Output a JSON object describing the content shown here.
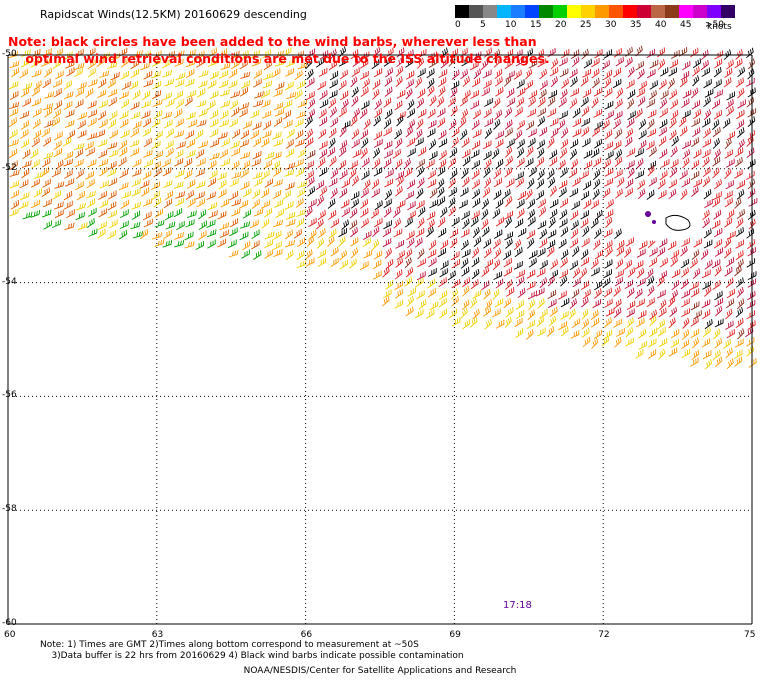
{
  "title": "Rapidscat Winds(12.5KM) 20160629 descending",
  "legend": {
    "colors": [
      "#000000",
      "#555555",
      "#888888",
      "#00b4ff",
      "#1a7cff",
      "#0044ff",
      "#008800",
      "#00d000",
      "#ffff00",
      "#ffd200",
      "#ff9900",
      "#ff5500",
      "#ff0000",
      "#cc0033",
      "#bb6644",
      "#8b3a1a",
      "#ff00ff",
      "#cc00cc",
      "#8000ff",
      "#330066"
    ],
    "labels": [
      "0",
      "5",
      "10",
      "15",
      "20",
      "25",
      "30",
      "35",
      "40",
      "45",
      ">50"
    ],
    "units": "knots"
  },
  "note": "Note: black circles have been added to the wind barbs, wherever less than\n    optimal wind retrieval conditions are met due to the ISS altitude changes.",
  "axes": {
    "x_ticks": [
      "60",
      "63",
      "66",
      "69",
      "72",
      "75"
    ],
    "y_ticks": [
      "-50",
      "-52",
      "-54",
      "-56",
      "-58",
      "-60"
    ]
  },
  "time_label": "17:18",
  "bottom_notes": "Note: 1) Times are GMT 2)Times along bottom correspond to measurement at ~50S\n    3)Data buffer is 22 hrs from 20160629 4) Black wind barbs indicate possible contamination",
  "credit": "NOAA/NESDIS/Center for Satellite Applications and Research"
}
